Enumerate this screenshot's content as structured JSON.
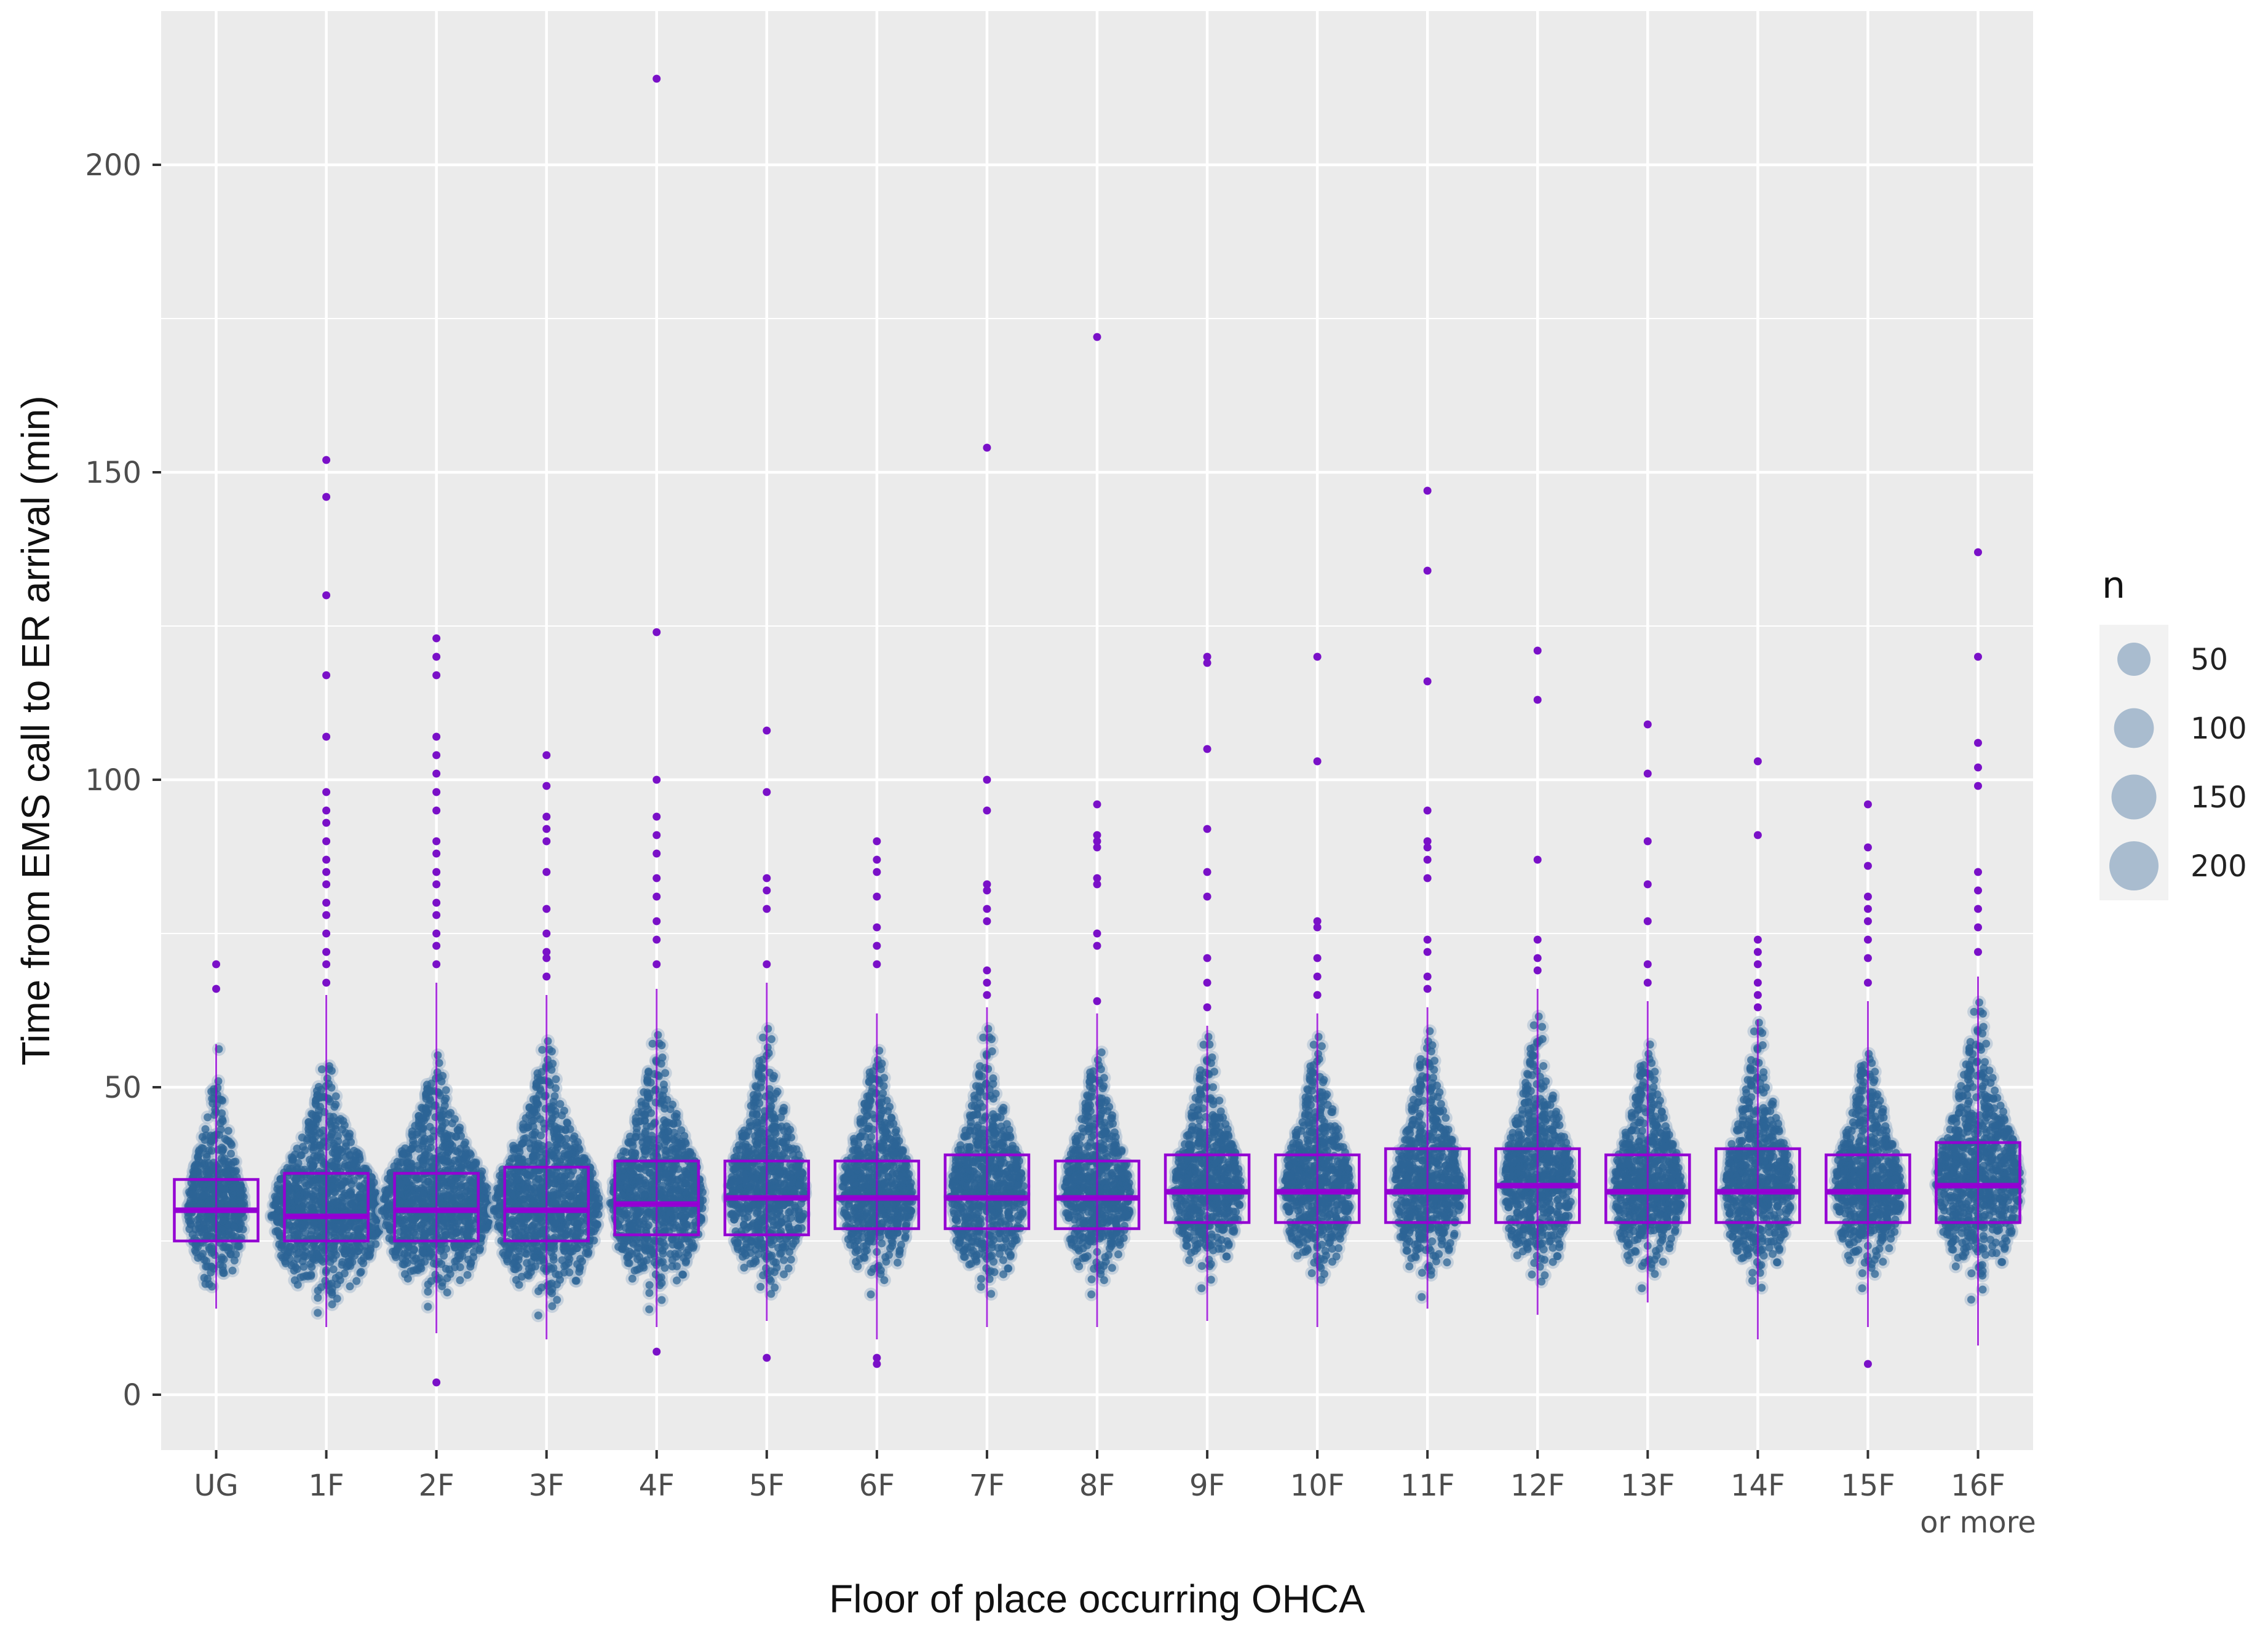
{
  "chart_data": {
    "type": "boxplot",
    "title": "",
    "xlabel": "Floor of place occurring OHCA",
    "ylabel": "Time from EMS call to ER arrival (min)",
    "ylim": [
      -9,
      225
    ],
    "y_ticks": [
      0,
      50,
      100,
      150,
      200
    ],
    "y_tick_labels": [
      "0",
      "50",
      "100",
      "150",
      "200"
    ],
    "grid": true,
    "colors": {
      "panel_background": "#ebebeb",
      "grid_major": "#ffffff",
      "points": "#2c6496",
      "point_halo": "#a8bccf",
      "outliers": "#7a10c8",
      "box": "#9400d3",
      "legend_background": "#f2f2f2",
      "legend_key": "#a9bccf"
    },
    "categories": [
      {
        "key": "UG",
        "label": "UG",
        "sublabel": "",
        "q1": 25,
        "median": 30,
        "q3": 35,
        "lower_whisker": 14,
        "upper_whisker": 57,
        "outliers": [
          66,
          70
        ],
        "spread": 0.38
      },
      {
        "key": "1F",
        "label": "1F",
        "sublabel": "",
        "q1": 25,
        "median": 29,
        "q3": 36,
        "lower_whisker": 11,
        "upper_whisker": 65,
        "outliers": [
          67,
          70,
          72,
          75,
          78,
          80,
          83,
          85,
          87,
          90,
          93,
          95,
          98,
          107,
          117,
          130,
          146,
          152
        ],
        "spread": 1.0
      },
      {
        "key": "2F",
        "label": "2F",
        "sublabel": "",
        "q1": 25,
        "median": 30,
        "q3": 36,
        "lower_whisker": 10,
        "upper_whisker": 67,
        "outliers": [
          2,
          70,
          73,
          75,
          78,
          80,
          83,
          85,
          88,
          90,
          95,
          98,
          101,
          104,
          107,
          117,
          120,
          123
        ],
        "spread": 1.0
      },
      {
        "key": "3F",
        "label": "3F",
        "sublabel": "",
        "q1": 25,
        "median": 30,
        "q3": 37,
        "lower_whisker": 9,
        "upper_whisker": 65,
        "outliers": [
          68,
          71,
          72,
          75,
          79,
          85,
          90,
          92,
          94,
          99,
          104
        ],
        "spread": 0.95
      },
      {
        "key": "4F",
        "label": "4F",
        "sublabel": "",
        "q1": 26,
        "median": 31,
        "q3": 38,
        "lower_whisker": 11,
        "upper_whisker": 66,
        "outliers": [
          7,
          70,
          74,
          77,
          81,
          84,
          88,
          91,
          94,
          100,
          124,
          214
        ],
        "spread": 0.8
      },
      {
        "key": "5F",
        "label": "5F",
        "sublabel": "",
        "q1": 26,
        "median": 32,
        "q3": 38,
        "lower_whisker": 12,
        "upper_whisker": 67,
        "outliers": [
          6,
          70,
          79,
          82,
          84,
          98,
          108
        ],
        "spread": 0.62
      },
      {
        "key": "6F",
        "label": "6F",
        "sublabel": "",
        "q1": 27,
        "median": 32,
        "q3": 38,
        "lower_whisker": 9,
        "upper_whisker": 62,
        "outliers": [
          5,
          6,
          70,
          73,
          76,
          81,
          85,
          87,
          90
        ],
        "spread": 0.55
      },
      {
        "key": "7F",
        "label": "7F",
        "sublabel": "",
        "q1": 27,
        "median": 32,
        "q3": 39,
        "lower_whisker": 11,
        "upper_whisker": 63,
        "outliers": [
          65,
          67,
          69,
          77,
          79,
          82,
          83,
          95,
          100,
          154
        ],
        "spread": 0.58
      },
      {
        "key": "8F",
        "label": "8F",
        "sublabel": "",
        "q1": 27,
        "median": 32,
        "q3": 38,
        "lower_whisker": 11,
        "upper_whisker": 62,
        "outliers": [
          64,
          73,
          75,
          83,
          84,
          89,
          90,
          91,
          96,
          172
        ],
        "spread": 0.5
      },
      {
        "key": "9F",
        "label": "9F",
        "sublabel": "",
        "q1": 28,
        "median": 33,
        "q3": 39,
        "lower_whisker": 12,
        "upper_whisker": 60,
        "outliers": [
          63,
          67,
          71,
          81,
          85,
          92,
          105,
          119,
          120
        ],
        "spread": 0.5
      },
      {
        "key": "10F",
        "label": "10F",
        "sublabel": "",
        "q1": 28,
        "median": 33,
        "q3": 39,
        "lower_whisker": 11,
        "upper_whisker": 62,
        "outliers": [
          65,
          68,
          71,
          76,
          77,
          103,
          120
        ],
        "spread": 0.5
      },
      {
        "key": "11F",
        "label": "11F",
        "sublabel": "",
        "q1": 28,
        "median": 33,
        "q3": 40,
        "lower_whisker": 14,
        "upper_whisker": 63,
        "outliers": [
          66,
          68,
          72,
          74,
          84,
          87,
          89,
          90,
          95,
          116,
          134,
          147
        ],
        "spread": 0.5
      },
      {
        "key": "12F",
        "label": "12F",
        "sublabel": "",
        "q1": 28,
        "median": 34,
        "q3": 40,
        "lower_whisker": 13,
        "upper_whisker": 66,
        "outliers": [
          69,
          71,
          74,
          87,
          113,
          121
        ],
        "spread": 0.52
      },
      {
        "key": "13F",
        "label": "13F",
        "sublabel": "",
        "q1": 28,
        "median": 33,
        "q3": 39,
        "lower_whisker": 15,
        "upper_whisker": 64,
        "outliers": [
          67,
          70,
          77,
          83,
          90,
          101,
          109
        ],
        "spread": 0.52
      },
      {
        "key": "14F",
        "label": "14F",
        "sublabel": "",
        "q1": 28,
        "median": 33,
        "q3": 40,
        "lower_whisker": 9,
        "upper_whisker": 61,
        "outliers": [
          63,
          65,
          67,
          70,
          72,
          74,
          91,
          103
        ],
        "spread": 0.5
      },
      {
        "key": "15F",
        "label": "15F",
        "sublabel": "",
        "q1": 28,
        "median": 33,
        "q3": 39,
        "lower_whisker": 11,
        "upper_whisker": 64,
        "outliers": [
          5,
          67,
          71,
          74,
          77,
          79,
          81,
          86,
          89,
          96
        ],
        "spread": 0.5
      },
      {
        "key": "16F",
        "label": "16F",
        "sublabel": "or more",
        "q1": 28,
        "median": 34,
        "q3": 41,
        "lower_whisker": 8,
        "upper_whisker": 68,
        "outliers": [
          72,
          76,
          79,
          82,
          85,
          99,
          102,
          106,
          120,
          137
        ],
        "spread": 0.7
      }
    ],
    "legend": {
      "title": "n",
      "placement": "right",
      "entries": [
        {
          "label": "50",
          "value": 50
        },
        {
          "label": "100",
          "value": 100
        },
        {
          "label": "150",
          "value": 150
        },
        {
          "label": "200",
          "value": 200
        }
      ]
    }
  }
}
